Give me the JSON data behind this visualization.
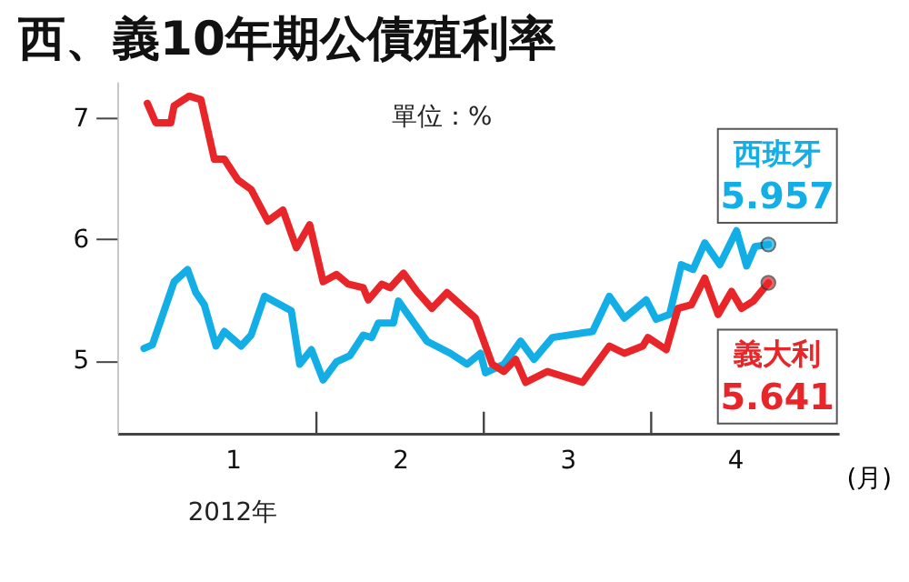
{
  "chart_data": {
    "type": "line",
    "title": "西、義10年期公債殖利率",
    "xlabel": "(月)",
    "annotations": [
      "單位：%",
      "2012年"
    ],
    "xlim": [
      0.31,
      4.62
    ],
    "xticks": [
      1,
      {
        "value": 1.5,
        "label": null
      },
      2,
      {
        "value": 2.5,
        "label": null
      },
      3,
      {
        "value": 3.5,
        "label": null
      },
      4
    ],
    "ylim": [
      4.4,
      7.3
    ],
    "yticks": [
      5,
      6,
      7
    ],
    "grid": false,
    "marker": "none",
    "line_style": "solid",
    "series": [
      {
        "name": "西班牙",
        "color": "#14aee6",
        "x": [
          0.47,
          0.52,
          0.65,
          0.73,
          0.78,
          0.83,
          0.9,
          0.95,
          1.05,
          1.11,
          1.19,
          1.35,
          1.4,
          1.47,
          1.54,
          1.62,
          1.7,
          1.78,
          1.83,
          1.87,
          1.96,
          1.99,
          2.16,
          2.3,
          2.4,
          2.48,
          2.51,
          2.62,
          2.72,
          2.8,
          2.91,
          3.15,
          3.25,
          3.34,
          3.47,
          3.53,
          3.61,
          3.68,
          3.75,
          3.82,
          3.91,
          4.01,
          4.07,
          4.12,
          4.2
        ],
        "values": [
          5.1,
          5.13,
          5.65,
          5.75,
          5.56,
          5.46,
          5.12,
          5.24,
          5.12,
          5.21,
          5.53,
          5.41,
          4.97,
          5.09,
          4.84,
          4.99,
          5.04,
          5.21,
          5.19,
          5.31,
          5.31,
          5.49,
          5.16,
          5.06,
          4.97,
          5.06,
          4.9,
          4.97,
          5.16,
          5.01,
          5.19,
          5.24,
          5.53,
          5.35,
          5.5,
          5.34,
          5.38,
          5.79,
          5.75,
          5.97,
          5.79,
          6.07,
          5.78,
          5.94,
          5.957
        ],
        "value_labels": [
          null,
          null,
          null,
          null,
          null,
          null,
          null,
          null,
          null,
          null,
          null,
          null,
          null,
          null,
          null,
          null,
          null,
          null,
          null,
          null,
          null,
          null,
          null,
          null,
          null,
          null,
          null,
          null,
          null,
          null,
          null,
          null,
          null,
          null,
          null,
          null,
          null,
          null,
          null,
          null,
          null,
          null,
          null,
          null,
          "5.957"
        ]
      },
      {
        "name": "義大利",
        "color": "#e8262a",
        "x": [
          0.49,
          0.54,
          0.63,
          0.65,
          0.74,
          0.81,
          0.89,
          0.95,
          1.03,
          1.11,
          1.21,
          1.3,
          1.38,
          1.46,
          1.54,
          1.62,
          1.69,
          1.78,
          1.81,
          1.89,
          1.94,
          2.02,
          2.1,
          2.19,
          2.28,
          2.45,
          2.55,
          2.62,
          2.69,
          2.75,
          2.88,
          3.09,
          3.25,
          3.34,
          3.45,
          3.48,
          3.59,
          3.66,
          3.74,
          3.82,
          3.9,
          3.98,
          4.04,
          4.11,
          4.2
        ],
        "values": [
          7.12,
          6.96,
          6.96,
          7.1,
          7.18,
          7.15,
          6.66,
          6.66,
          6.49,
          6.41,
          6.15,
          6.24,
          5.93,
          6.12,
          5.65,
          5.71,
          5.63,
          5.6,
          5.5,
          5.63,
          5.6,
          5.72,
          5.57,
          5.43,
          5.56,
          5.35,
          4.97,
          4.91,
          5.01,
          4.82,
          4.91,
          4.82,
          5.12,
          5.06,
          5.12,
          5.19,
          5.09,
          5.43,
          5.46,
          5.68,
          5.38,
          5.57,
          5.43,
          5.49,
          5.641
        ],
        "value_labels": [
          null,
          null,
          null,
          null,
          null,
          null,
          null,
          null,
          null,
          null,
          null,
          null,
          null,
          null,
          null,
          null,
          null,
          null,
          null,
          null,
          null,
          null,
          null,
          null,
          null,
          null,
          null,
          null,
          null,
          null,
          null,
          null,
          null,
          null,
          null,
          null,
          null,
          null,
          null,
          null,
          null,
          null,
          null,
          null,
          "5.641"
        ]
      }
    ]
  }
}
